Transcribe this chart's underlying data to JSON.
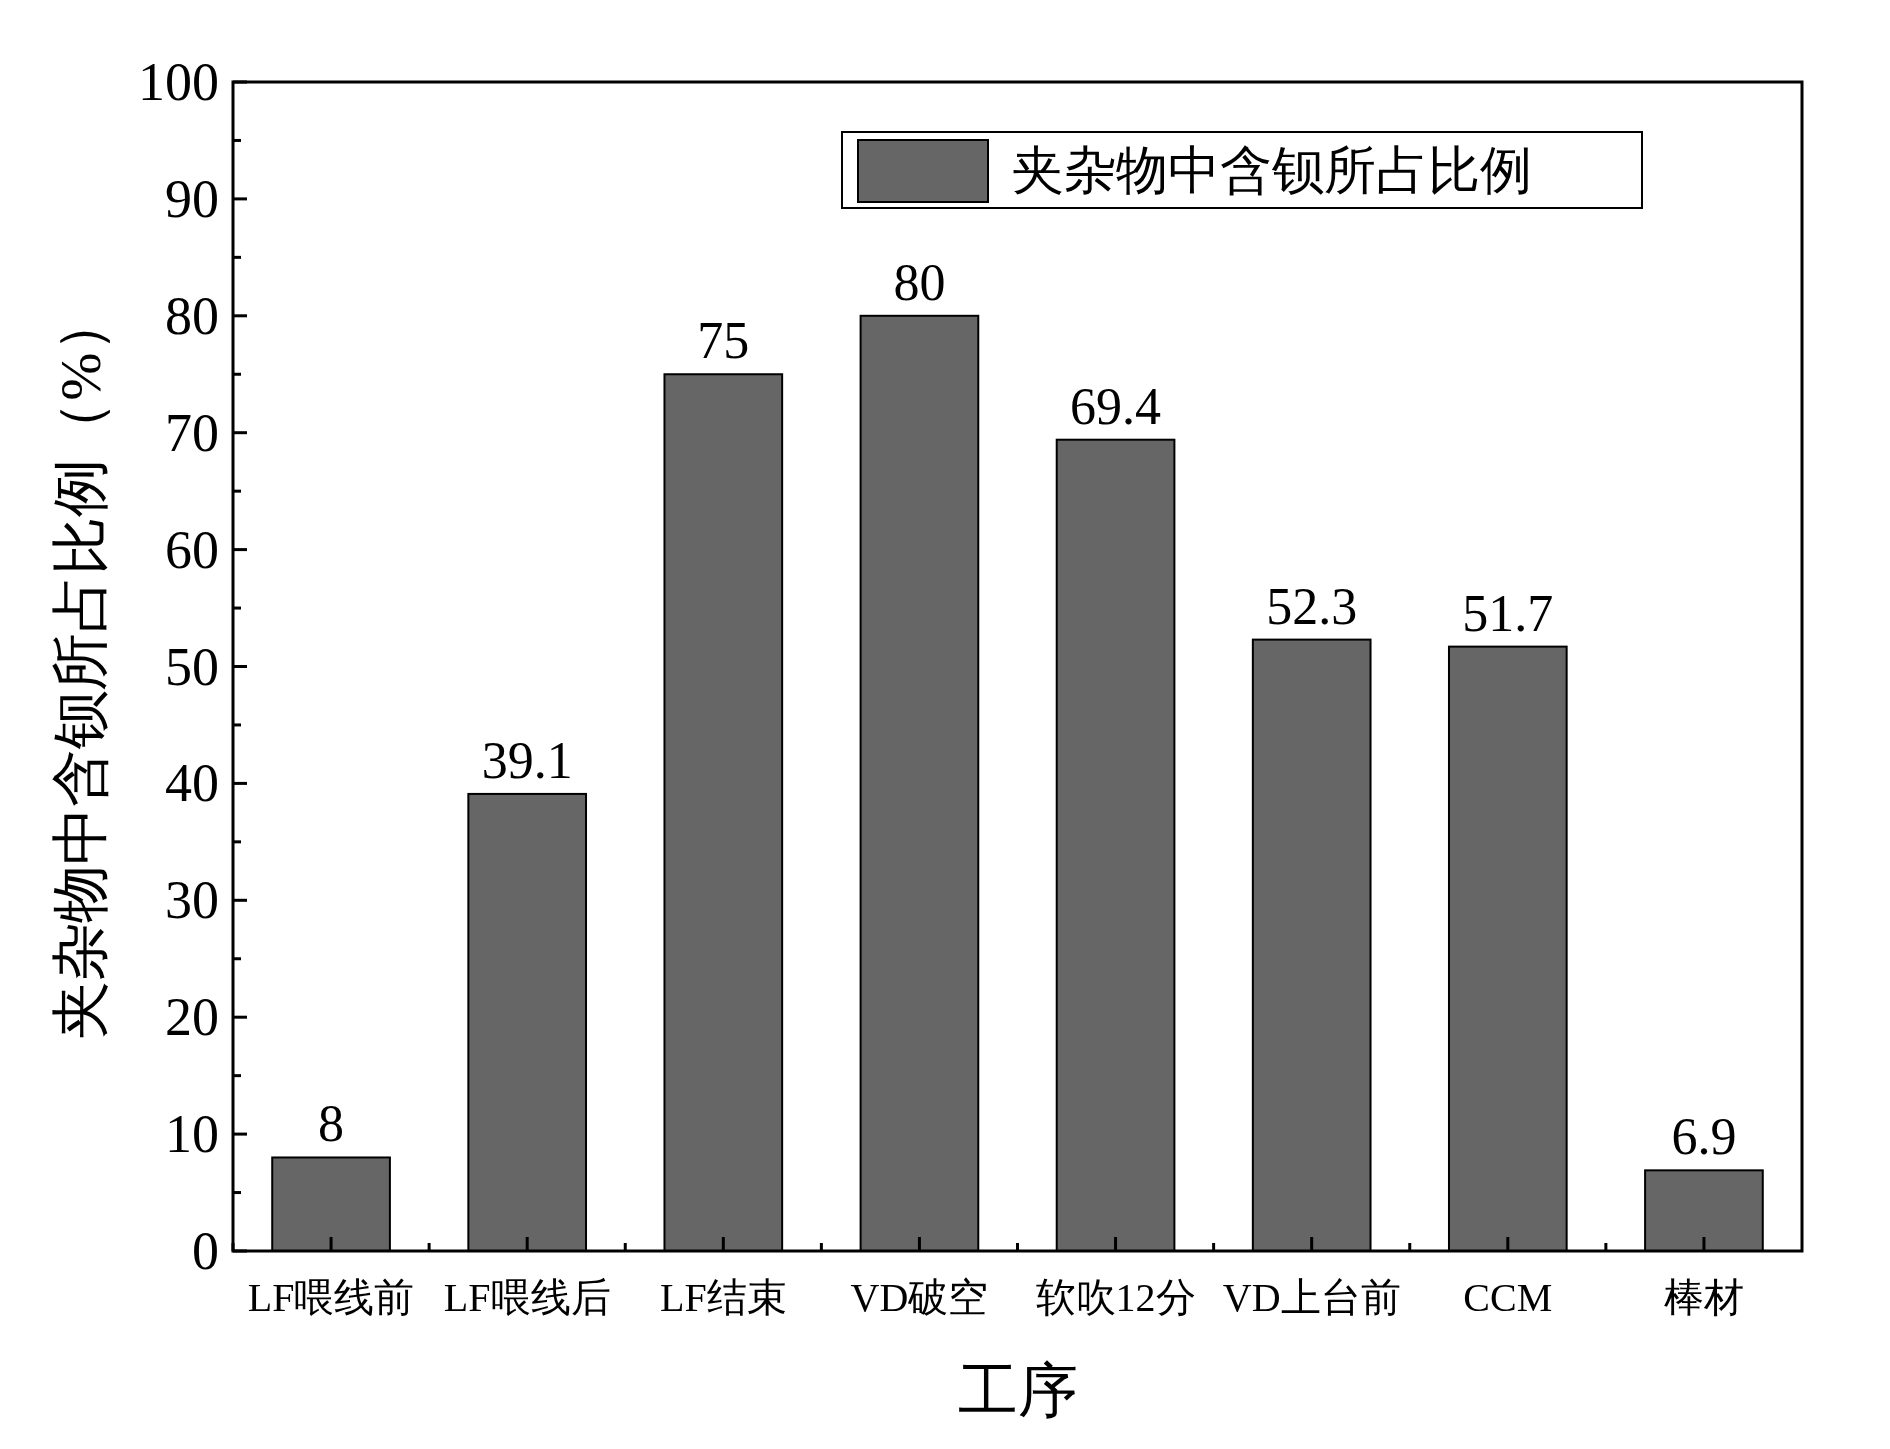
{
  "chart_data": {
    "type": "bar",
    "categories": [
      "LF喂线前",
      "LF喂线后",
      "LF结束",
      "VD破空",
      "软吹12分",
      "VD上台前",
      "CCM",
      "棒材"
    ],
    "series": [
      {
        "name": "夹杂物中含钡所占比例",
        "color": "#666666",
        "values": [
          8,
          39.1,
          75,
          80,
          69.4,
          52.3,
          51.7,
          6.9
        ]
      }
    ],
    "xlabel": "工序",
    "ylabel": "夹杂物中含钡所占比例（%）",
    "ylim": [
      0,
      100
    ],
    "yticks": [
      0,
      10,
      20,
      30,
      40,
      50,
      60,
      70,
      80,
      90,
      100
    ],
    "data_labels": true,
    "legend": "top right",
    "grid": false
  }
}
